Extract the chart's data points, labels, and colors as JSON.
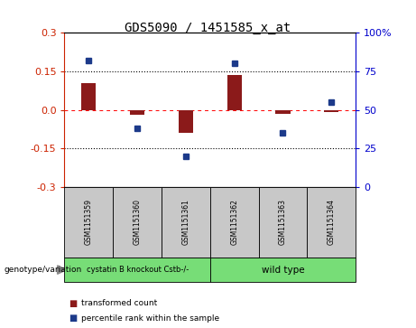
{
  "title": "GDS5090 / 1451585_x_at",
  "categories": [
    "GSM1151359",
    "GSM1151360",
    "GSM1151361",
    "GSM1151362",
    "GSM1151363",
    "GSM1151364"
  ],
  "bar_values": [
    0.105,
    -0.02,
    -0.09,
    0.135,
    -0.015,
    -0.01
  ],
  "percentile_values": [
    82,
    38,
    20,
    80,
    35,
    55
  ],
  "ylim_left": [
    -0.3,
    0.3
  ],
  "ylim_right": [
    0,
    100
  ],
  "yticks_left": [
    -0.3,
    -0.15,
    0.0,
    0.15,
    0.3
  ],
  "yticks_right": [
    0,
    25,
    50,
    75,
    100
  ],
  "hlines": [
    0.15,
    -0.15
  ],
  "bar_color": "#8B1A1A",
  "percentile_color": "#1C3A8A",
  "bar_width": 0.3,
  "group1_label": "cystatin B knockout Cstb-/-",
  "group2_label": "wild type",
  "group1_color": "#77DD77",
  "group2_color": "#77DD77",
  "left_tick_color": "#CC2200",
  "right_tick_color": "#0000CC",
  "legend_label_bar": "transformed count",
  "legend_label_pct": "percentile rank within the sample",
  "genotype_label": "genotype/variation",
  "sample_box_color": "#C8C8C8",
  "bg_color": "#ffffff"
}
